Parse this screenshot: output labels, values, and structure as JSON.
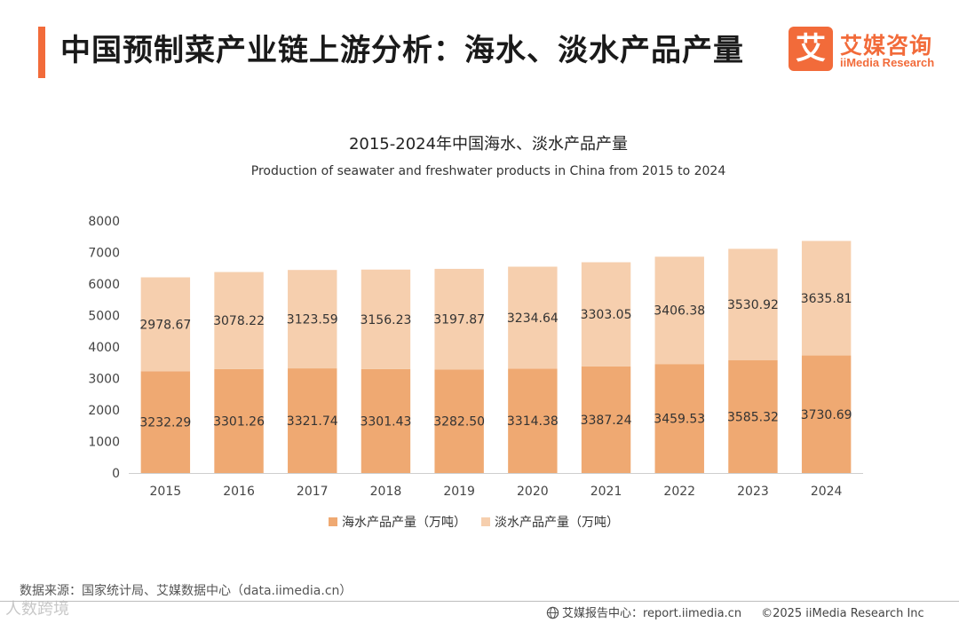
{
  "header": {
    "title": "中国预制菜产业链上游分析：海水、淡水产品产量"
  },
  "logo": {
    "mark": "艾",
    "cn": "艾媒咨询",
    "en": "iiMedia Research"
  },
  "colors": {
    "accent": "#f26b3a",
    "seawater": "#efa972",
    "freshwater": "#f6cfae",
    "axis_text": "#444444"
  },
  "chart_data": {
    "type": "bar",
    "stacked": true,
    "title": "2015-2024年中国海水、淡水产品产量",
    "subtitle": "Production of seawater and freshwater products in China from 2015 to 2024",
    "categories": [
      "2015",
      "2016",
      "2017",
      "2018",
      "2019",
      "2020",
      "2021",
      "2022",
      "2023",
      "2024"
    ],
    "series": [
      {
        "name": "海水产品产量（万吨）",
        "values": [
          3232.29,
          3301.26,
          3321.74,
          3301.43,
          3282.5,
          3314.38,
          3387.24,
          3459.53,
          3585.32,
          3730.69
        ]
      },
      {
        "name": "淡水产品产量（万吨）",
        "values": [
          2978.67,
          3078.22,
          3123.59,
          3156.23,
          3197.87,
          3234.64,
          3303.05,
          3406.38,
          3530.92,
          3635.81
        ]
      }
    ],
    "ylim": [
      0,
      8000
    ],
    "yticks": [
      0,
      1000,
      2000,
      3000,
      4000,
      5000,
      6000,
      7000,
      8000
    ],
    "xlabel": "",
    "ylabel": "",
    "grid": false,
    "legend": "bottom"
  },
  "footer": {
    "source": "数据来源：国家统计局、艾媒数据中心（data.iimedia.cn）",
    "watermark": "人数跨境",
    "report_center": "艾媒报告中心：report.iimedia.cn",
    "copyright": "©2025  iiMedia Research  Inc"
  }
}
